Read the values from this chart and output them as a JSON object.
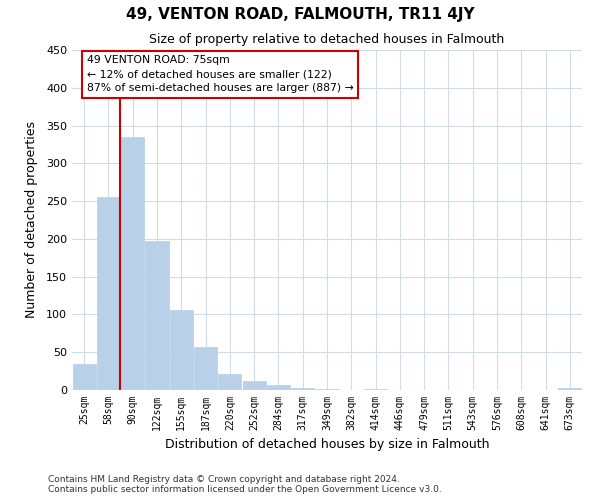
{
  "title": "49, VENTON ROAD, FALMOUTH, TR11 4JY",
  "subtitle": "Size of property relative to detached houses in Falmouth",
  "xlabel": "Distribution of detached houses by size in Falmouth",
  "ylabel": "Number of detached properties",
  "bar_labels": [
    "25sqm",
    "58sqm",
    "90sqm",
    "122sqm",
    "155sqm",
    "187sqm",
    "220sqm",
    "252sqm",
    "284sqm",
    "317sqm",
    "349sqm",
    "382sqm",
    "414sqm",
    "446sqm",
    "479sqm",
    "511sqm",
    "543sqm",
    "576sqm",
    "608sqm",
    "641sqm",
    "673sqm"
  ],
  "bar_values": [
    35,
    255,
    335,
    197,
    106,
    57,
    21,
    12,
    7,
    3,
    1,
    0,
    1,
    0,
    0,
    0,
    0,
    0,
    0,
    0,
    2
  ],
  "bar_color": "#b8d0e8",
  "bar_edgecolor": "#b8d0e8",
  "vline_color": "#cc0000",
  "vline_x": 1.48,
  "annotation_title": "49 VENTON ROAD: 75sqm",
  "annotation_line1": "← 12% of detached houses are smaller (122)",
  "annotation_line2": "87% of semi-detached houses are larger (887) →",
  "annotation_box_edgecolor": "#cc0000",
  "ylim": [
    0,
    450
  ],
  "yticks": [
    0,
    50,
    100,
    150,
    200,
    250,
    300,
    350,
    400,
    450
  ],
  "grid_color": "#d0dce8",
  "footer1": "Contains HM Land Registry data © Crown copyright and database right 2024.",
  "footer2": "Contains public sector information licensed under the Open Government Licence v3.0."
}
